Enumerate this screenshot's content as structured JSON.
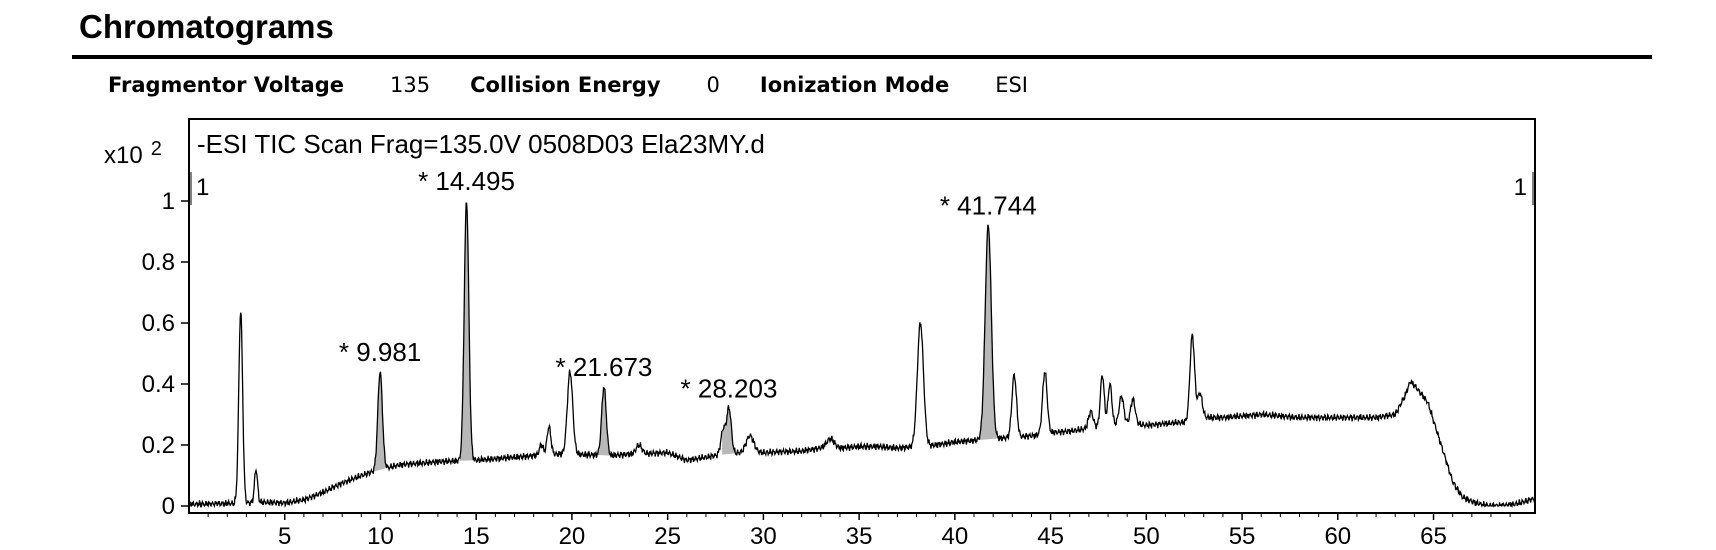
{
  "header": {
    "title": "Chromatograms",
    "params": [
      {
        "label": "Fragmentor Voltage",
        "value": "135"
      },
      {
        "label": "Collision Energy",
        "value": "0"
      },
      {
        "label": "Ionization Mode",
        "value": "ESI"
      }
    ]
  },
  "chart_data": {
    "type": "line",
    "title": "-ESI TIC Scan Frag=135.0V 0508D03 Ela23MY.d",
    "ylabel_multiplier": "x10 2",
    "xlim": [
      0,
      70.3
    ],
    "ylim": [
      0,
      1.25
    ],
    "x_ticks": [
      5,
      10,
      15,
      20,
      25,
      30,
      35,
      40,
      45,
      50,
      55,
      60,
      65
    ],
    "y_ticks": [
      0,
      0.2,
      0.4,
      0.6,
      0.8,
      1
    ],
    "y_tick_labels": [
      "0",
      "0.2",
      "0.4",
      "0.6",
      "0.8",
      "1"
    ],
    "corner_markers": {
      "left": "1",
      "right": "1"
    },
    "baseline": [
      [
        0.0,
        0.005
      ],
      [
        2.0,
        0.008
      ],
      [
        4.0,
        0.012
      ],
      [
        5.0,
        0.01
      ],
      [
        6.0,
        0.02
      ],
      [
        7.0,
        0.045
      ],
      [
        8.0,
        0.075
      ],
      [
        9.0,
        0.1
      ],
      [
        10.0,
        0.12
      ],
      [
        11.0,
        0.135
      ],
      [
        12.0,
        0.14
      ],
      [
        13.0,
        0.145
      ],
      [
        14.0,
        0.148
      ],
      [
        15.0,
        0.15
      ],
      [
        16.0,
        0.155
      ],
      [
        17.0,
        0.16
      ],
      [
        18.0,
        0.165
      ],
      [
        19.0,
        0.17
      ],
      [
        20.0,
        0.17
      ],
      [
        21.0,
        0.168
      ],
      [
        22.0,
        0.165
      ],
      [
        23.0,
        0.17
      ],
      [
        24.0,
        0.172
      ],
      [
        25.0,
        0.175
      ],
      [
        26.0,
        0.15
      ],
      [
        27.0,
        0.16
      ],
      [
        28.0,
        0.17
      ],
      [
        29.0,
        0.175
      ],
      [
        30.0,
        0.175
      ],
      [
        31.0,
        0.178
      ],
      [
        32.0,
        0.18
      ],
      [
        33.0,
        0.19
      ],
      [
        34.0,
        0.19
      ],
      [
        35.0,
        0.195
      ],
      [
        36.0,
        0.195
      ],
      [
        37.0,
        0.19
      ],
      [
        38.0,
        0.195
      ],
      [
        39.0,
        0.2
      ],
      [
        40.0,
        0.21
      ],
      [
        41.0,
        0.215
      ],
      [
        42.0,
        0.22
      ],
      [
        43.0,
        0.225
      ],
      [
        44.0,
        0.23
      ],
      [
        45.0,
        0.24
      ],
      [
        46.0,
        0.245
      ],
      [
        47.0,
        0.255
      ],
      [
        48.0,
        0.265
      ],
      [
        49.0,
        0.27
      ],
      [
        50.0,
        0.265
      ],
      [
        51.0,
        0.27
      ],
      [
        52.0,
        0.275
      ],
      [
        53.0,
        0.29
      ],
      [
        54.0,
        0.29
      ],
      [
        55.0,
        0.295
      ],
      [
        56.0,
        0.3
      ],
      [
        57.0,
        0.295
      ],
      [
        58.0,
        0.29
      ],
      [
        59.0,
        0.29
      ],
      [
        60.0,
        0.29
      ],
      [
        61.0,
        0.29
      ],
      [
        62.0,
        0.29
      ],
      [
        63.0,
        0.3
      ],
      [
        63.5,
        0.36
      ],
      [
        63.8,
        0.41
      ],
      [
        64.2,
        0.38
      ],
      [
        64.7,
        0.34
      ],
      [
        65.0,
        0.28
      ],
      [
        65.5,
        0.18
      ],
      [
        66.0,
        0.08
      ],
      [
        66.5,
        0.03
      ],
      [
        67.0,
        0.015
      ],
      [
        67.5,
        0.005
      ],
      [
        68.0,
        0.0
      ],
      [
        69.0,
        0.003
      ],
      [
        69.5,
        0.01
      ],
      [
        70.0,
        0.02
      ],
      [
        70.3,
        0.025
      ]
    ],
    "peaks": [
      {
        "rt": 2.7,
        "height": 0.64,
        "width": 0.1
      },
      {
        "rt": 3.5,
        "height": 0.12,
        "width": 0.08
      },
      {
        "rt": 9.981,
        "height": 0.44,
        "width": 0.12
      },
      {
        "rt": 14.495,
        "height": 1.0,
        "width": 0.12
      },
      {
        "rt": 18.4,
        "height": 0.2,
        "width": 0.1
      },
      {
        "rt": 18.8,
        "height": 0.26,
        "width": 0.1
      },
      {
        "rt": 19.9,
        "height": 0.44,
        "width": 0.14
      },
      {
        "rt": 21.673,
        "height": 0.39,
        "width": 0.12
      },
      {
        "rt": 23.5,
        "height": 0.2,
        "width": 0.15
      },
      {
        "rt": 27.9,
        "height": 0.25,
        "width": 0.12
      },
      {
        "rt": 28.203,
        "height": 0.32,
        "width": 0.12
      },
      {
        "rt": 29.3,
        "height": 0.23,
        "width": 0.2
      },
      {
        "rt": 33.5,
        "height": 0.22,
        "width": 0.2
      },
      {
        "rt": 38.2,
        "height": 0.6,
        "width": 0.16
      },
      {
        "rt": 41.744,
        "height": 0.92,
        "width": 0.16
      },
      {
        "rt": 43.1,
        "height": 0.43,
        "width": 0.12
      },
      {
        "rt": 44.7,
        "height": 0.44,
        "width": 0.12
      },
      {
        "rt": 47.1,
        "height": 0.31,
        "width": 0.12
      },
      {
        "rt": 47.7,
        "height": 0.43,
        "width": 0.1
      },
      {
        "rt": 48.1,
        "height": 0.4,
        "width": 0.1
      },
      {
        "rt": 48.7,
        "height": 0.36,
        "width": 0.12
      },
      {
        "rt": 49.3,
        "height": 0.35,
        "width": 0.12
      },
      {
        "rt": 52.4,
        "height": 0.56,
        "width": 0.12
      },
      {
        "rt": 52.8,
        "height": 0.37,
        "width": 0.12
      }
    ],
    "labeled_peaks": [
      {
        "rt": 9.981,
        "label": "* 9.981"
      },
      {
        "rt": 14.495,
        "label": "* 14.495"
      },
      {
        "rt": 21.673,
        "label": "* 21.673"
      },
      {
        "rt": 28.203,
        "label": "* 28.203"
      },
      {
        "rt": 41.744,
        "label": "* 41.744"
      }
    ],
    "colors": {
      "line": "#000000",
      "fill": "#b8b8b8",
      "marker": "#808080"
    }
  }
}
